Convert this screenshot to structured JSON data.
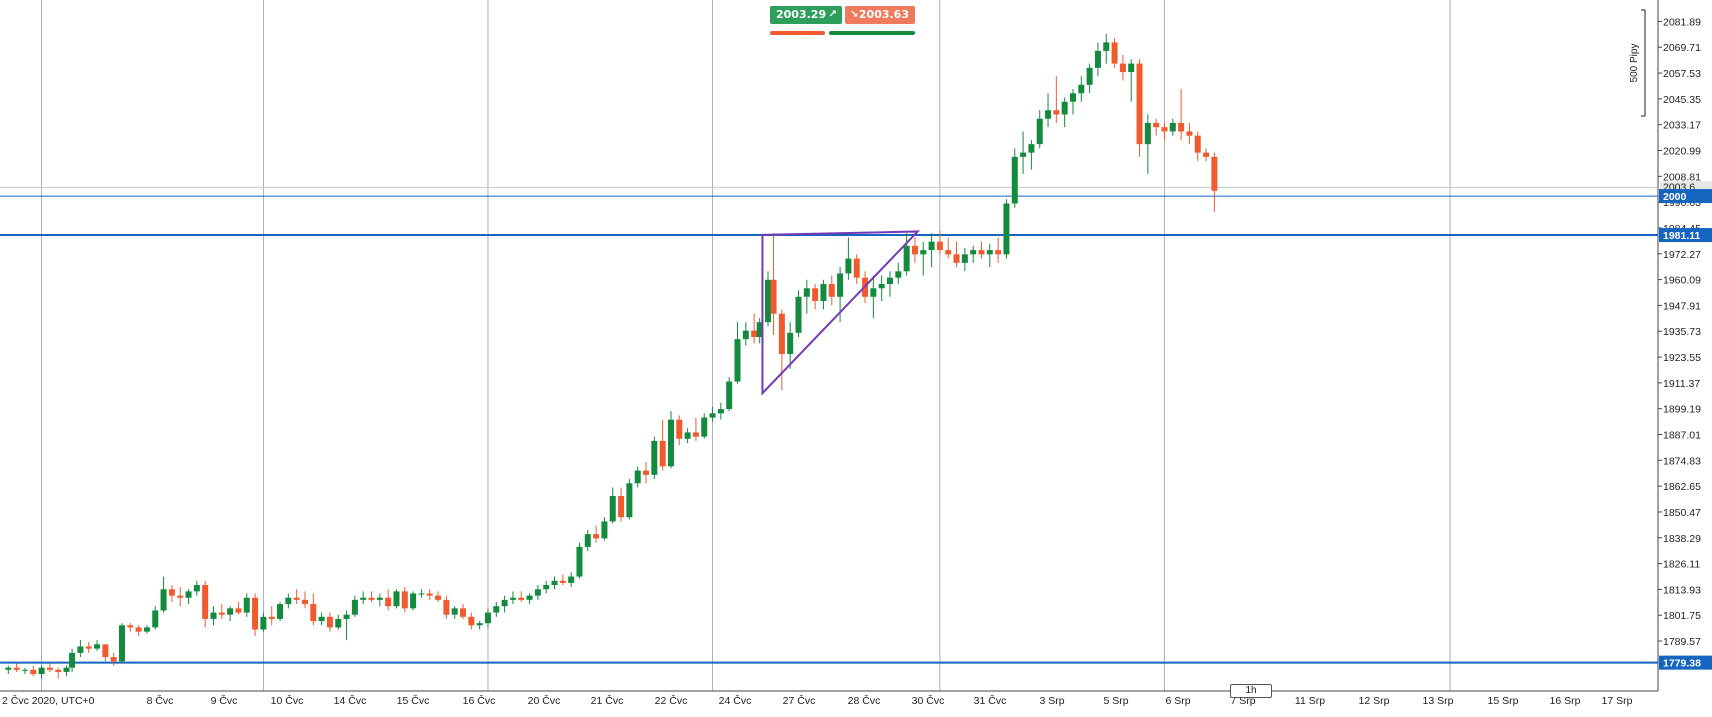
{
  "toolbar": {
    "buy_price": "2003.29",
    "sell_price": "2003.63",
    "buy_icon": "arrow-up-right-icon",
    "sell_icon": "arrow-down-right-icon"
  },
  "timeframe": "1h",
  "range_label": "500 Pipy",
  "colors": {
    "up": "#148a3e",
    "down": "#ef5b2e",
    "level_line": "#1565c0",
    "triangle": "#7438b8",
    "grid": "#9e9e9e"
  },
  "chart_data": {
    "type": "candlestick",
    "instrument_note": "",
    "ylim": [
      1766,
      2092
    ],
    "y_ticks": [
      "2081.89",
      "2069.71",
      "2057.53",
      "2045.35",
      "2033.17",
      "2020.99",
      "2008.81",
      "1996.63",
      "1984.45",
      "1972.27",
      "1960.09",
      "1947.91",
      "1935.73",
      "1923.55",
      "1911.37",
      "1899.19",
      "1887.01",
      "1874.83",
      "1862.65",
      "1850.47",
      "1838.29",
      "1826.11",
      "1813.93",
      "1801.75",
      "1789.57"
    ],
    "x_labels": [
      "2 Čvc 2020, UTC+0",
      "8 Čvc",
      "9 Čvc",
      "10 Čvc",
      "14 Čvc",
      "15 Čvc",
      "16 Čvc",
      "20 Čvc",
      "21 Čvc",
      "22 Čvc",
      "24 Čvc",
      "27 Čvc",
      "28 Čvc",
      "30 Čvc",
      "31 Čvc",
      "3 Srp",
      "5 Srp",
      "6 Srp",
      "7 Srp",
      "11 Srp",
      "12 Srp",
      "13 Srp",
      "15 Srp",
      "16 Srp",
      "17 Srp"
    ],
    "levels": [
      {
        "label": "2000",
        "value": 1999.5
      },
      {
        "label": "1981.11",
        "value": 1981.11
      },
      {
        "label": "1779.38",
        "value": 1779.38
      }
    ],
    "triangle": [
      [
        27.2,
        1981.2
      ],
      [
        27.2,
        1906.5
      ],
      [
        32.8,
        1982.8
      ]
    ],
    "highlight_label": "2003.6",
    "candles": [
      [
        0.0,
        1776,
        1778,
        1774,
        1777
      ],
      [
        0.3,
        1777,
        1779,
        1775,
        1776
      ],
      [
        0.6,
        1776,
        1777,
        1774,
        1776
      ],
      [
        0.9,
        1776,
        1778,
        1773,
        1774
      ],
      [
        1.2,
        1774,
        1778,
        1772,
        1777
      ],
      [
        1.5,
        1777,
        1779,
        1775,
        1776
      ],
      [
        1.8,
        1776,
        1777,
        1772,
        1775
      ],
      [
        2.1,
        1775,
        1778,
        1773,
        1777
      ],
      [
        2.3,
        1777,
        1786,
        1775,
        1784
      ],
      [
        2.6,
        1784,
        1790,
        1782,
        1787
      ],
      [
        2.9,
        1787,
        1789,
        1784,
        1786
      ],
      [
        3.2,
        1786,
        1790,
        1785,
        1788
      ],
      [
        3.5,
        1788,
        1788,
        1780,
        1782
      ],
      [
        3.8,
        1782,
        1784,
        1778,
        1780
      ],
      [
        4.1,
        1780,
        1798,
        1779,
        1797
      ],
      [
        4.4,
        1797,
        1798,
        1794,
        1796
      ],
      [
        4.7,
        1796,
        1797,
        1792,
        1794
      ],
      [
        5.0,
        1794,
        1797,
        1793,
        1796
      ],
      [
        5.3,
        1796,
        1806,
        1795,
        1804
      ],
      [
        5.6,
        1804,
        1820,
        1803,
        1814
      ],
      [
        5.9,
        1814,
        1816,
        1808,
        1811
      ],
      [
        6.2,
        1811,
        1815,
        1806,
        1810
      ],
      [
        6.5,
        1810,
        1814,
        1807,
        1813
      ],
      [
        6.8,
        1813,
        1818,
        1811,
        1816
      ],
      [
        7.1,
        1816,
        1818,
        1796,
        1800
      ],
      [
        7.4,
        1800,
        1806,
        1797,
        1803
      ],
      [
        7.7,
        1803,
        1807,
        1800,
        1802
      ],
      [
        8.0,
        1802,
        1806,
        1799,
        1805
      ],
      [
        8.3,
        1805,
        1808,
        1802,
        1803
      ],
      [
        8.6,
        1803,
        1812,
        1801,
        1810
      ],
      [
        8.9,
        1810,
        1812,
        1792,
        1795
      ],
      [
        9.2,
        1795,
        1803,
        1794,
        1801
      ],
      [
        9.5,
        1801,
        1806,
        1797,
        1800
      ],
      [
        9.8,
        1800,
        1808,
        1799,
        1807
      ],
      [
        10.1,
        1807,
        1812,
        1805,
        1810
      ],
      [
        10.4,
        1810,
        1814,
        1807,
        1809
      ],
      [
        10.7,
        1809,
        1813,
        1805,
        1807
      ],
      [
        11.0,
        1807,
        1812,
        1797,
        1799
      ],
      [
        11.3,
        1799,
        1803,
        1797,
        1801
      ],
      [
        11.6,
        1801,
        1803,
        1794,
        1796
      ],
      [
        11.9,
        1796,
        1802,
        1795,
        1800
      ],
      [
        12.2,
        1800,
        1804,
        1790,
        1802
      ],
      [
        12.5,
        1802,
        1811,
        1801,
        1809
      ],
      [
        12.8,
        1809,
        1813,
        1807,
        1810
      ],
      [
        13.1,
        1810,
        1813,
        1808,
        1809
      ],
      [
        13.4,
        1809,
        1812,
        1806,
        1810
      ],
      [
        13.7,
        1810,
        1814,
        1804,
        1806
      ],
      [
        14.0,
        1806,
        1814,
        1805,
        1813
      ],
      [
        14.3,
        1813,
        1815,
        1803,
        1805
      ],
      [
        14.6,
        1805,
        1813,
        1804,
        1812
      ],
      [
        14.9,
        1812,
        1814,
        1810,
        1812
      ],
      [
        15.2,
        1812,
        1814,
        1809,
        1811
      ],
      [
        15.5,
        1811,
        1813,
        1808,
        1809
      ],
      [
        15.8,
        1809,
        1811,
        1800,
        1802
      ],
      [
        16.1,
        1802,
        1806,
        1800,
        1805
      ],
      [
        16.4,
        1805,
        1807,
        1800,
        1801
      ],
      [
        16.7,
        1801,
        1803,
        1795,
        1797
      ],
      [
        17.0,
        1797,
        1799,
        1795,
        1798
      ],
      [
        17.3,
        1798,
        1805,
        1796,
        1803
      ],
      [
        17.6,
        1803,
        1808,
        1801,
        1806
      ],
      [
        17.9,
        1806,
        1811,
        1803,
        1809
      ],
      [
        18.2,
        1809,
        1813,
        1807,
        1810
      ],
      [
        18.5,
        1810,
        1813,
        1808,
        1809
      ],
      [
        18.8,
        1809,
        1812,
        1807,
        1811
      ],
      [
        19.1,
        1811,
        1816,
        1809,
        1814
      ],
      [
        19.4,
        1814,
        1818,
        1812,
        1816
      ],
      [
        19.7,
        1816,
        1820,
        1814,
        1818
      ],
      [
        20.0,
        1818,
        1821,
        1816,
        1817
      ],
      [
        20.3,
        1817,
        1822,
        1815,
        1820
      ],
      [
        20.6,
        1820,
        1836,
        1819,
        1834
      ],
      [
        20.9,
        1834,
        1842,
        1832,
        1840
      ],
      [
        21.2,
        1840,
        1844,
        1836,
        1838
      ],
      [
        21.5,
        1838,
        1848,
        1837,
        1846
      ],
      [
        21.8,
        1846,
        1862,
        1845,
        1858
      ],
      [
        22.1,
        1858,
        1862,
        1846,
        1848
      ],
      [
        22.4,
        1848,
        1866,
        1847,
        1864
      ],
      [
        22.7,
        1864,
        1872,
        1862,
        1870
      ],
      [
        23.0,
        1870,
        1874,
        1864,
        1868
      ],
      [
        23.3,
        1868,
        1886,
        1866,
        1884
      ],
      [
        23.6,
        1884,
        1894,
        1870,
        1872
      ],
      [
        23.9,
        1872,
        1898,
        1871,
        1894
      ],
      [
        24.2,
        1894,
        1896,
        1882,
        1885
      ],
      [
        24.5,
        1885,
        1890,
        1883,
        1888
      ],
      [
        24.8,
        1888,
        1895,
        1884,
        1886
      ],
      [
        25.1,
        1886,
        1897,
        1885,
        1895
      ],
      [
        25.4,
        1895,
        1900,
        1893,
        1897
      ],
      [
        25.7,
        1897,
        1902,
        1894,
        1899
      ],
      [
        26.0,
        1899,
        1914,
        1898,
        1912
      ],
      [
        26.3,
        1912,
        1940,
        1911,
        1932
      ],
      [
        26.6,
        1932,
        1940,
        1929,
        1936
      ],
      [
        26.9,
        1936,
        1944,
        1930,
        1933
      ],
      [
        27.1,
        1933,
        1942,
        1930,
        1940
      ],
      [
        27.4,
        1940,
        1964,
        1938,
        1960
      ],
      [
        27.6,
        1960,
        1982,
        1934,
        1944
      ],
      [
        27.9,
        1944,
        1946,
        1908,
        1925
      ],
      [
        28.2,
        1925,
        1940,
        1918,
        1935
      ],
      [
        28.5,
        1935,
        1955,
        1933,
        1952
      ],
      [
        28.8,
        1952,
        1960,
        1944,
        1956
      ],
      [
        29.1,
        1956,
        1958,
        1946,
        1950
      ],
      [
        29.4,
        1950,
        1960,
        1946,
        1958
      ],
      [
        29.7,
        1958,
        1962,
        1948,
        1952
      ],
      [
        30.0,
        1952,
        1966,
        1940,
        1963
      ],
      [
        30.3,
        1963,
        1980,
        1960,
        1970
      ],
      [
        30.6,
        1970,
        1972,
        1958,
        1961
      ],
      [
        30.9,
        1961,
        1964,
        1949,
        1952
      ],
      [
        31.2,
        1952,
        1962,
        1942,
        1956
      ],
      [
        31.5,
        1956,
        1962,
        1950,
        1958
      ],
      [
        31.8,
        1958,
        1964,
        1952,
        1961
      ],
      [
        32.1,
        1961,
        1968,
        1958,
        1964
      ],
      [
        32.4,
        1964,
        1982,
        1962,
        1976
      ],
      [
        32.7,
        1976,
        1980,
        1968,
        1972
      ],
      [
        33.0,
        1972,
        1978,
        1962,
        1974
      ],
      [
        33.3,
        1974,
        1982,
        1966,
        1978
      ],
      [
        33.6,
        1978,
        1983,
        1972,
        1974
      ],
      [
        33.9,
        1974,
        1980,
        1970,
        1972
      ],
      [
        34.2,
        1972,
        1978,
        1966,
        1968
      ],
      [
        34.5,
        1968,
        1975,
        1964,
        1972
      ],
      [
        34.8,
        1972,
        1976,
        1968,
        1974
      ],
      [
        35.1,
        1974,
        1978,
        1970,
        1972
      ],
      [
        35.4,
        1972,
        1977,
        1966,
        1974
      ],
      [
        35.7,
        1974,
        1980,
        1968,
        1972
      ],
      [
        36.0,
        1972,
        1998,
        1970,
        1996
      ],
      [
        36.3,
        1996,
        2022,
        1994,
        2018
      ],
      [
        36.6,
        2018,
        2030,
        2010,
        2020
      ],
      [
        36.9,
        2020,
        2026,
        2012,
        2024
      ],
      [
        37.2,
        2024,
        2040,
        2022,
        2036
      ],
      [
        37.5,
        2036,
        2048,
        2032,
        2040
      ],
      [
        37.8,
        2040,
        2056,
        2034,
        2038
      ],
      [
        38.1,
        2038,
        2046,
        2032,
        2044
      ],
      [
        38.4,
        2044,
        2050,
        2038,
        2048
      ],
      [
        38.7,
        2048,
        2056,
        2044,
        2052
      ],
      [
        39.0,
        2052,
        2062,
        2048,
        2060
      ],
      [
        39.3,
        2060,
        2072,
        2056,
        2068
      ],
      [
        39.6,
        2068,
        2076,
        2062,
        2072
      ],
      [
        39.9,
        2072,
        2074,
        2060,
        2062
      ],
      [
        40.2,
        2062,
        2066,
        2054,
        2058
      ],
      [
        40.5,
        2058,
        2064,
        2044,
        2062
      ],
      [
        40.8,
        2062,
        2064,
        2018,
        2024
      ],
      [
        41.1,
        2024,
        2038,
        2010,
        2034
      ],
      [
        41.4,
        2034,
        2036,
        2028,
        2032
      ],
      [
        41.7,
        2032,
        2034,
        2026,
        2030
      ],
      [
        42.0,
        2030,
        2036,
        2028,
        2034
      ],
      [
        42.3,
        2034,
        2050,
        2026,
        2030
      ],
      [
        42.6,
        2030,
        2034,
        2024,
        2028
      ],
      [
        42.9,
        2028,
        2030,
        2016,
        2020
      ],
      [
        43.2,
        2020,
        2022,
        2016,
        2018
      ],
      [
        43.5,
        2018,
        2020,
        1992,
        2002
      ]
    ]
  }
}
